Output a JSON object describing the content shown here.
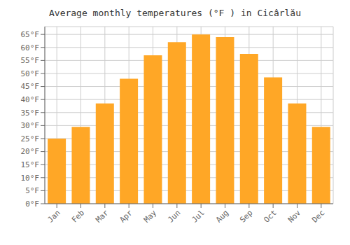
{
  "chart_data": {
    "type": "bar",
    "title": "Average monthly temperatures (°F ) in Cicârlău",
    "categories": [
      "Jan",
      "Feb",
      "Mar",
      "Apr",
      "May",
      "Jun",
      "Jul",
      "Aug",
      "Sep",
      "Oct",
      "Nov",
      "Dec"
    ],
    "values": [
      25,
      29.5,
      38.5,
      48,
      57,
      62,
      65,
      64,
      57.5,
      48.5,
      38.5,
      29.5
    ],
    "color": "#FFA726",
    "ylim": [
      0,
      68
    ],
    "yticks": [
      {
        "value": 0,
        "label": "0°F"
      },
      {
        "value": 5,
        "label": "5°F"
      },
      {
        "value": 10,
        "label": "10°F"
      },
      {
        "value": 15,
        "label": "15°F"
      },
      {
        "value": 20,
        "label": "20°F"
      },
      {
        "value": 25,
        "label": "25°F"
      },
      {
        "value": 30,
        "label": "30°F"
      },
      {
        "value": 35,
        "label": "35°F"
      },
      {
        "value": 40,
        "label": "40°F"
      },
      {
        "value": 45,
        "label": "45°F"
      },
      {
        "value": 50,
        "label": "50°F"
      },
      {
        "value": 55,
        "label": "55°F"
      },
      {
        "value": 60,
        "label": "60°F"
      },
      {
        "value": 65,
        "label": "65°F"
      }
    ],
    "grid": true
  }
}
